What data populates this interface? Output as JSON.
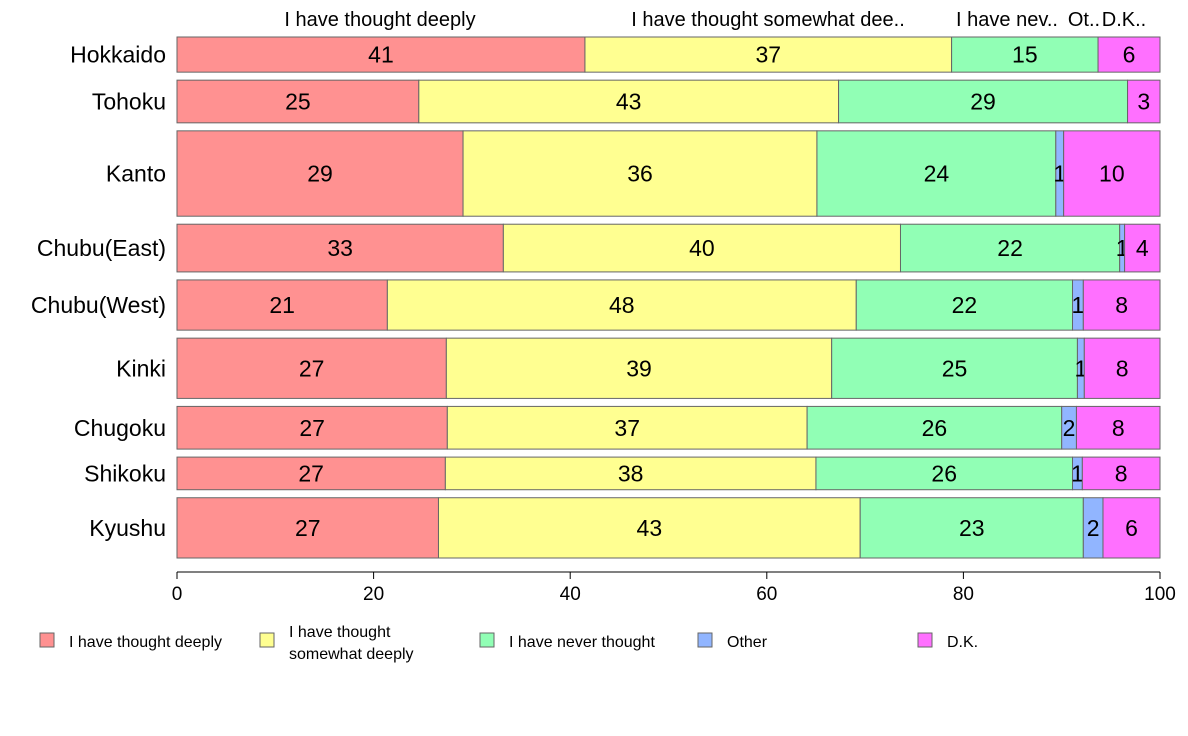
{
  "chart_data": {
    "type": "bar",
    "orientation": "horizontal",
    "stacked": true,
    "categories": [
      "Hokkaido",
      "Tohoku",
      "Kanto",
      "Chubu(East)",
      "Chubu(West)",
      "Kinki",
      "Chugoku",
      "Shikoku",
      "Kyushu"
    ],
    "column_headers": [
      "I have thought deeply",
      "I have thought somewhat dee..",
      "I have nev..",
      "Ot..",
      "D.K.."
    ],
    "series": [
      {
        "name": "I have thought deeply",
        "color": "#ff9191",
        "values": [
          41.5,
          24.6,
          29.1,
          33.2,
          21.4,
          27.4,
          27.5,
          27.3,
          26.6
        ],
        "labels": [
          "41",
          "25",
          "29",
          "33",
          "21",
          "27",
          "27",
          "27",
          "27"
        ]
      },
      {
        "name": "I have thought somewhat deeply",
        "legend_lines": [
          "I have thought",
          "somewhat deeply"
        ],
        "color": "#ffff91",
        "values": [
          37.3,
          42.7,
          36.0,
          40.4,
          47.7,
          39.2,
          36.6,
          37.7,
          42.9
        ],
        "labels": [
          "37",
          "43",
          "36",
          "40",
          "48",
          "39",
          "37",
          "38",
          "43"
        ]
      },
      {
        "name": "I have never thought",
        "color": "#91ffb5",
        "values": [
          14.9,
          29.4,
          24.3,
          22.3,
          22.0,
          25.0,
          25.9,
          26.1,
          22.7
        ],
        "labels": [
          "15",
          "29",
          "24",
          "22",
          "22",
          "25",
          "26",
          "26",
          "23"
        ]
      },
      {
        "name": "Other",
        "color": "#91b5ff",
        "values": [
          0,
          0,
          0.8,
          0.5,
          1.1,
          0.7,
          1.5,
          1.0,
          2.0
        ],
        "labels": [
          "",
          "",
          "1",
          "1",
          "1",
          "1",
          "2",
          "1",
          "2"
        ]
      },
      {
        "name": "D.K.",
        "color": "#ff70ff",
        "values": [
          6.3,
          3.3,
          9.8,
          3.6,
          7.8,
          7.7,
          8.5,
          7.9,
          5.8
        ],
        "labels": [
          "6",
          "3",
          "10",
          "4",
          "8",
          "8",
          "8",
          "8",
          "6"
        ]
      }
    ],
    "bar_weights": [
      0.7,
      0.85,
      1.7,
      0.95,
      1.0,
      1.2,
      0.85,
      0.65,
      1.2
    ],
    "x_ticks": [
      "0",
      "20",
      "40",
      "60",
      "80",
      "100"
    ],
    "xlim": [
      0,
      100
    ],
    "grid": false,
    "legend_position": "bottom"
  }
}
